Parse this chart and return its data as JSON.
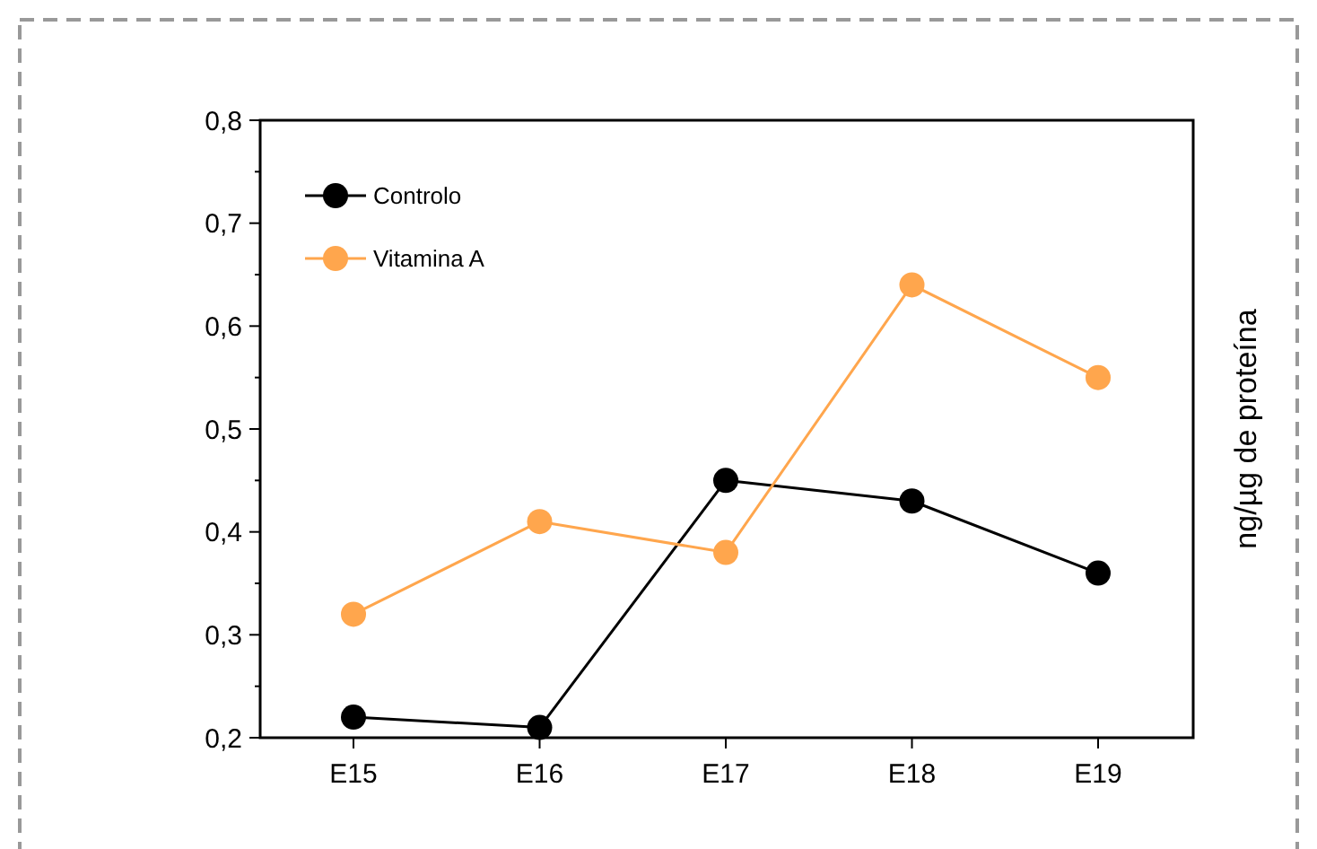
{
  "chart_data": {
    "type": "line",
    "ylabel": "ng/µg de proteína",
    "categories": [
      "E15",
      "E16",
      "E17",
      "E18",
      "E19"
    ],
    "series": [
      {
        "name": "Controlo",
        "color": "#000000",
        "values": [
          0.22,
          0.21,
          0.45,
          0.43,
          0.36
        ]
      },
      {
        "name": "Vitamina A",
        "color": "#ffa64d",
        "values": [
          0.32,
          0.41,
          0.38,
          0.64,
          0.55
        ]
      }
    ],
    "ylim": [
      0.2,
      0.8
    ],
    "yticks": [
      {
        "value": 0.2,
        "label": "0,2"
      },
      {
        "value": 0.25,
        "label": null
      },
      {
        "value": 0.3,
        "label": "0,3"
      },
      {
        "value": 0.35,
        "label": null
      },
      {
        "value": 0.4,
        "label": "0,4"
      },
      {
        "value": 0.45,
        "label": null
      },
      {
        "value": 0.5,
        "label": "0,5"
      },
      {
        "value": 0.55,
        "label": null
      },
      {
        "value": 0.6,
        "label": "0,6"
      },
      {
        "value": 0.65,
        "label": null
      },
      {
        "value": 0.7,
        "label": "0,7"
      },
      {
        "value": 0.75,
        "label": null
      },
      {
        "value": 0.8,
        "label": "0,8"
      }
    ],
    "grid": false,
    "legend": "top left",
    "marker": "circle",
    "line_style": "solid"
  }
}
